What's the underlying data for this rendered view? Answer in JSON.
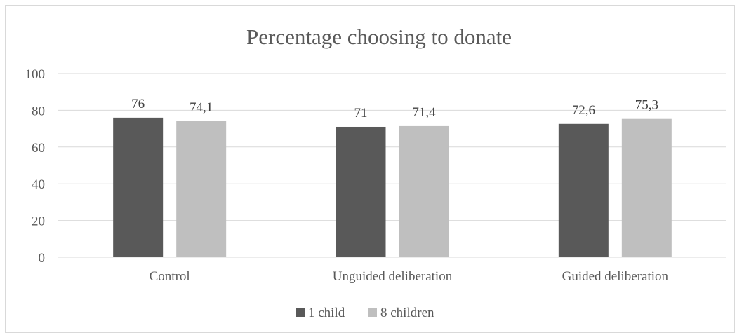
{
  "chart_data": {
    "type": "bar",
    "title": "Percentage choosing to donate",
    "xlabel": "",
    "ylabel": "",
    "categories": [
      "Control",
      "Unguided deliberation",
      "Guided deliberation"
    ],
    "series": [
      {
        "name": "1 child",
        "values": [
          76,
          71,
          72.6
        ],
        "labels": [
          "76",
          "71",
          "72,6"
        ],
        "color": "#595959"
      },
      {
        "name": "8 children",
        "values": [
          74.1,
          71.4,
          75.3
        ],
        "labels": [
          "74,1",
          "71,4",
          "75,3"
        ],
        "color": "#bfbfbf"
      }
    ],
    "ylim": [
      0,
      100
    ],
    "yticks": [
      0,
      20,
      40,
      60,
      80,
      100
    ],
    "grid": true,
    "legend_position": "bottom"
  }
}
